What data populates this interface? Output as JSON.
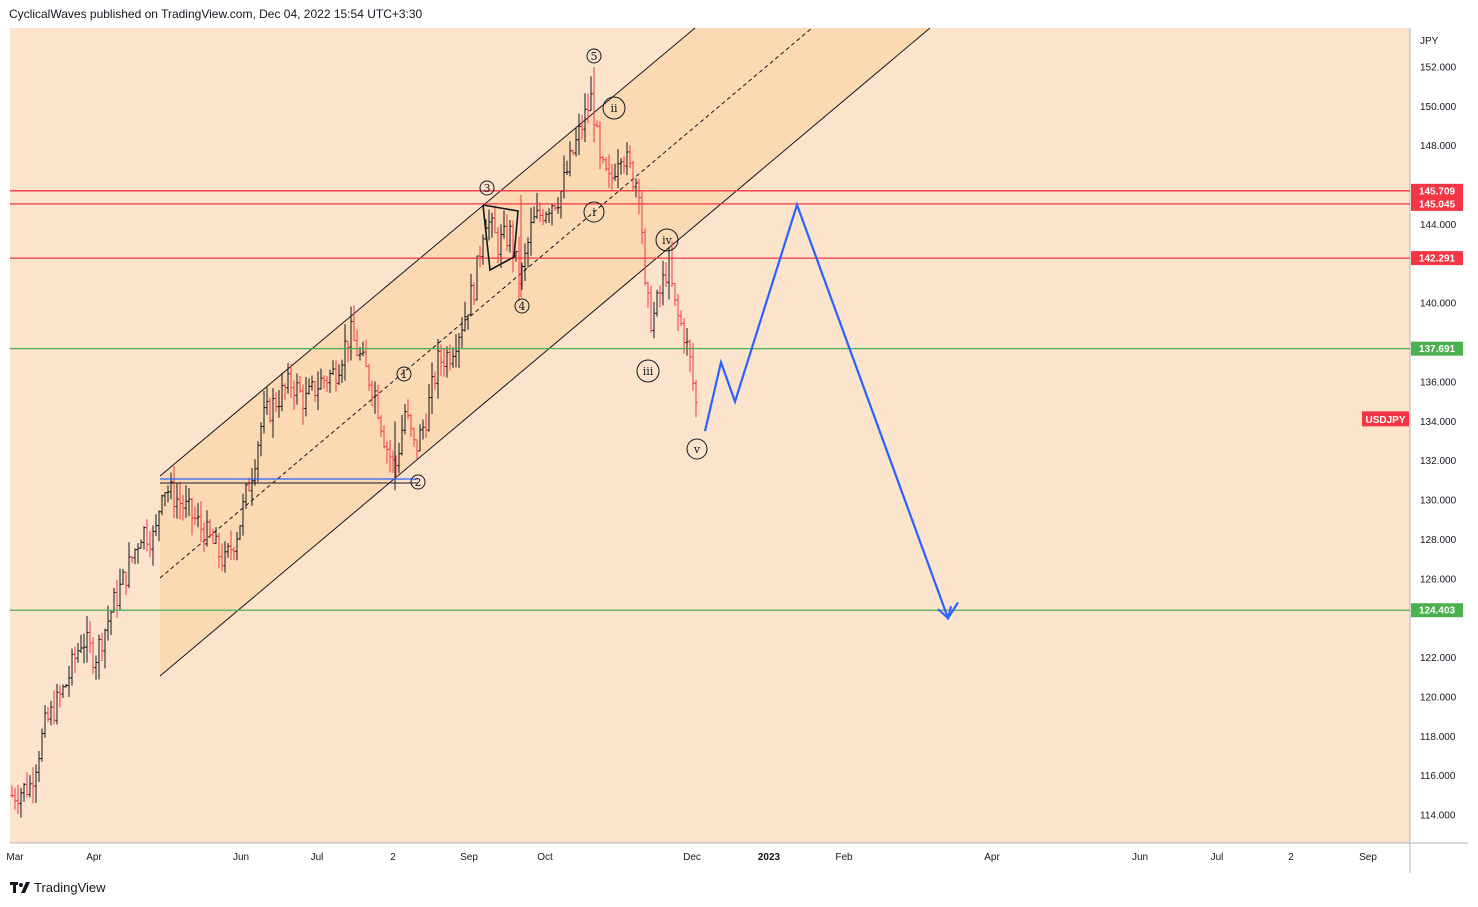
{
  "header": {
    "text": "CyclicalWaves published on TradingView.com, Dec 04, 2022 15:54 UTC+3:30"
  },
  "footer": {
    "brand": "TradingView",
    "logo_icon": "tradingview-logo-icon"
  },
  "colors": {
    "background": "#fce4cc",
    "channel_fill": "#fbd6ab",
    "red_level": "#f23645",
    "green_level": "#4caf50",
    "blue_projection": "#2962ff",
    "candle_up": "#131722",
    "candle_down": "#f23645"
  },
  "chart_data": {
    "type": "candlestick",
    "symbol": "USDJPY",
    "currency": "JPY",
    "y_axis": {
      "ticks": [
        "152.000",
        "150.000",
        "148.000",
        "144.000",
        "140.000",
        "136.000",
        "134.000",
        "132.000",
        "130.000",
        "128.000",
        "126.000",
        "122.000",
        "120.000",
        "118.000",
        "116.000",
        "114.000"
      ]
    },
    "x_axis": {
      "ticks": [
        {
          "label": "Mar",
          "bold": false
        },
        {
          "label": "Apr",
          "bold": false
        },
        {
          "label": "Jun",
          "bold": false
        },
        {
          "label": "Jul",
          "bold": false
        },
        {
          "label": "2",
          "bold": false
        },
        {
          "label": "Sep",
          "bold": false
        },
        {
          "label": "Oct",
          "bold": false
        },
        {
          "label": "Dec",
          "bold": false
        },
        {
          "label": "2023",
          "bold": true
        },
        {
          "label": "Feb",
          "bold": false
        },
        {
          "label": "Apr",
          "bold": false
        },
        {
          "label": "Jun",
          "bold": false
        },
        {
          "label": "Jul",
          "bold": false
        },
        {
          "label": "2",
          "bold": false
        },
        {
          "label": "Sep",
          "bold": false
        }
      ]
    },
    "levels": [
      {
        "value": "145.709",
        "color": "red"
      },
      {
        "value": "145.045",
        "color": "red"
      },
      {
        "value": "142.291",
        "color": "red"
      },
      {
        "value": "137.691",
        "color": "green"
      },
      {
        "value": "124.403",
        "color": "green"
      }
    ],
    "current_price_label": "USDJPY",
    "wave_labels": [
      "5",
      "3",
      "4",
      "1",
      "2",
      "i",
      "ii",
      "iii",
      "iv",
      "v"
    ],
    "projection_path_prices": [
      133.5,
      137.0,
      135.0,
      145.0,
      124.0,
      124.8
    ]
  }
}
